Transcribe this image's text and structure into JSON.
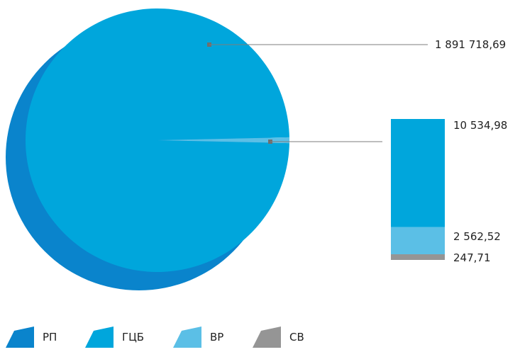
{
  "chart_data": {
    "type": "pie",
    "series": [
      {
        "name": "РП",
        "color": "#0a84cc"
      },
      {
        "name": "ГЦБ",
        "color": "#00a6dc"
      },
      {
        "name": "ВР",
        "color": "#5bbfe6"
      },
      {
        "name": "СВ",
        "color": "#959595"
      }
    ],
    "pie": [
      {
        "series": "ГЦБ",
        "value": 1891718.69,
        "label": "1 891 718,69"
      },
      {
        "series": "rest",
        "value": 13345.21
      }
    ],
    "breakdown": [
      {
        "series": "ГЦБ",
        "value": 10534.98,
        "label": "10 534,98"
      },
      {
        "series": "ВР",
        "value": 2562.52,
        "label": "2 562,52"
      },
      {
        "series": "СВ",
        "value": 247.71,
        "label": "247,71"
      }
    ]
  },
  "legend": {
    "items": [
      {
        "label": "РП",
        "color": "#0a84cc"
      },
      {
        "label": "ГЦБ",
        "color": "#00a6dc"
      },
      {
        "label": "ВР",
        "color": "#5bbfe6"
      },
      {
        "label": "СВ",
        "color": "#959595"
      }
    ]
  }
}
